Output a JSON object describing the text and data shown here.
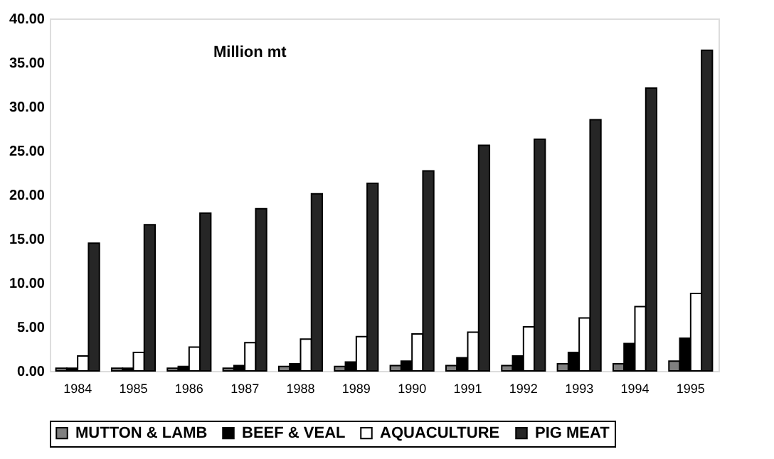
{
  "chart_data": {
    "type": "bar",
    "categories": [
      "1984",
      "1985",
      "1986",
      "1987",
      "1988",
      "1989",
      "1990",
      "1991",
      "1992",
      "1993",
      "1994",
      "1995"
    ],
    "series": [
      {
        "name": "MUTTON & LAMB",
        "color": "#808080",
        "values": [
          0.3,
          0.3,
          0.3,
          0.3,
          0.5,
          0.5,
          0.6,
          0.6,
          0.6,
          0.8,
          0.8,
          1.1
        ]
      },
      {
        "name": "BEEF & VEAL",
        "color": "#000000",
        "values": [
          0.3,
          0.3,
          0.5,
          0.6,
          0.8,
          1.0,
          1.1,
          1.5,
          1.7,
          2.1,
          3.1,
          3.7
        ]
      },
      {
        "name": "AQUACULTURE",
        "color": "#ffffff",
        "values": [
          1.7,
          2.1,
          2.7,
          3.2,
          3.6,
          3.9,
          4.2,
          4.4,
          5.0,
          6.0,
          7.3,
          8.8
        ]
      },
      {
        "name": "PIG MEAT",
        "color": "#262626",
        "values": [
          14.5,
          16.6,
          17.9,
          18.4,
          20.1,
          21.3,
          22.7,
          25.6,
          26.3,
          28.5,
          32.1,
          36.4
        ]
      }
    ],
    "ylim": [
      0,
      40
    ],
    "yticks": [
      {
        "value": 0,
        "label": "0.00"
      },
      {
        "value": 5,
        "label": "5.00"
      },
      {
        "value": 10,
        "label": "10.00"
      },
      {
        "value": 15,
        "label": "15.00"
      },
      {
        "value": 20,
        "label": "20.00"
      },
      {
        "value": 25,
        "label": "25.00"
      },
      {
        "value": 30,
        "label": "30.00"
      },
      {
        "value": 35,
        "label": "35.00"
      },
      {
        "value": 40,
        "label": "40.00"
      }
    ],
    "annotations": [
      "Million mt"
    ],
    "grid": false,
    "legend": "bottom"
  }
}
